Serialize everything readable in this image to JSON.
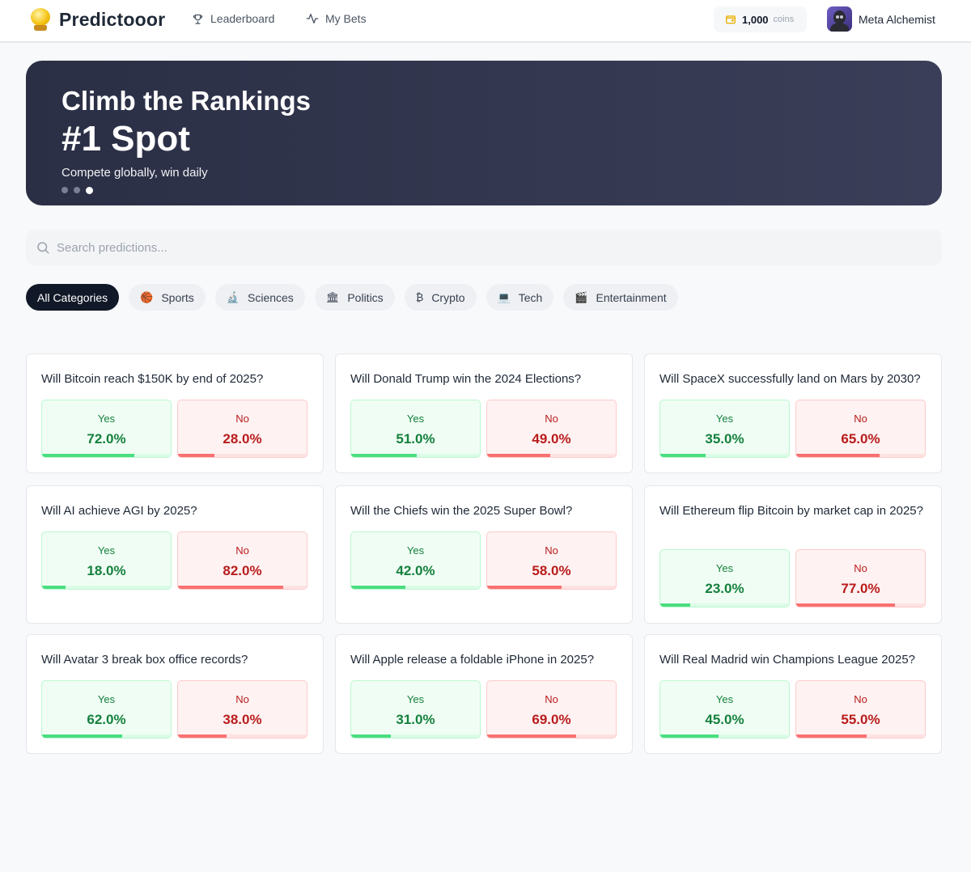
{
  "app": {
    "name": "Predictooor"
  },
  "nav": {
    "leaderboard": "Leaderboard",
    "my_bets": "My Bets"
  },
  "wallet": {
    "amount": "1,000",
    "unit": "coins"
  },
  "user": {
    "name": "Meta Alchemist"
  },
  "hero": {
    "title": "Climb the Rankings",
    "highlight": "#1 Spot",
    "subtitle": "Compete globally, win daily",
    "slides": 3,
    "active_slide": 3
  },
  "search": {
    "placeholder": "Search predictions..."
  },
  "categories": [
    {
      "label": "All Categories",
      "icon": "",
      "active": true
    },
    {
      "label": "Sports",
      "icon": "🏀",
      "active": false
    },
    {
      "label": "Sciences",
      "icon": "🔬",
      "active": false
    },
    {
      "label": "Politics",
      "icon": "🏛",
      "active": false
    },
    {
      "label": "Crypto",
      "icon": "₿",
      "active": false
    },
    {
      "label": "Tech",
      "icon": "💻",
      "active": false
    },
    {
      "label": "Entertainment",
      "icon": "🎬",
      "active": false
    }
  ],
  "options": {
    "yes_label": "Yes",
    "no_label": "No"
  },
  "markets": [
    {
      "question": "Will Bitcoin reach $150K by end of 2025?",
      "yes": 72.0,
      "no": 28.0,
      "yes_text": "72.0%",
      "no_text": "28.0%"
    },
    {
      "question": "Will Donald Trump win the 2024 Elections?",
      "yes": 51.0,
      "no": 49.0,
      "yes_text": "51.0%",
      "no_text": "49.0%"
    },
    {
      "question": "Will SpaceX successfully land on Mars by 2030?",
      "yes": 35.0,
      "no": 65.0,
      "yes_text": "35.0%",
      "no_text": "65.0%"
    },
    {
      "question": "Will AI achieve AGI by 2025?",
      "yes": 18.0,
      "no": 82.0,
      "yes_text": "18.0%",
      "no_text": "82.0%"
    },
    {
      "question": "Will the Chiefs win the 2025 Super Bowl?",
      "yes": 42.0,
      "no": 58.0,
      "yes_text": "42.0%",
      "no_text": "58.0%"
    },
    {
      "question": "Will Ethereum flip Bitcoin by market cap in 2025?",
      "yes": 23.0,
      "no": 77.0,
      "yes_text": "23.0%",
      "no_text": "77.0%"
    },
    {
      "question": "Will Avatar 3 break box office records?",
      "yes": 62.0,
      "no": 38.0,
      "yes_text": "62.0%",
      "no_text": "38.0%"
    },
    {
      "question": "Will Apple release a foldable iPhone in 2025?",
      "yes": 31.0,
      "no": 69.0,
      "yes_text": "31.0%",
      "no_text": "69.0%"
    },
    {
      "question": "Will Real Madrid win Champions League 2025?",
      "yes": 45.0,
      "no": 55.0,
      "yes_text": "45.0%",
      "no_text": "55.0%"
    }
  ]
}
